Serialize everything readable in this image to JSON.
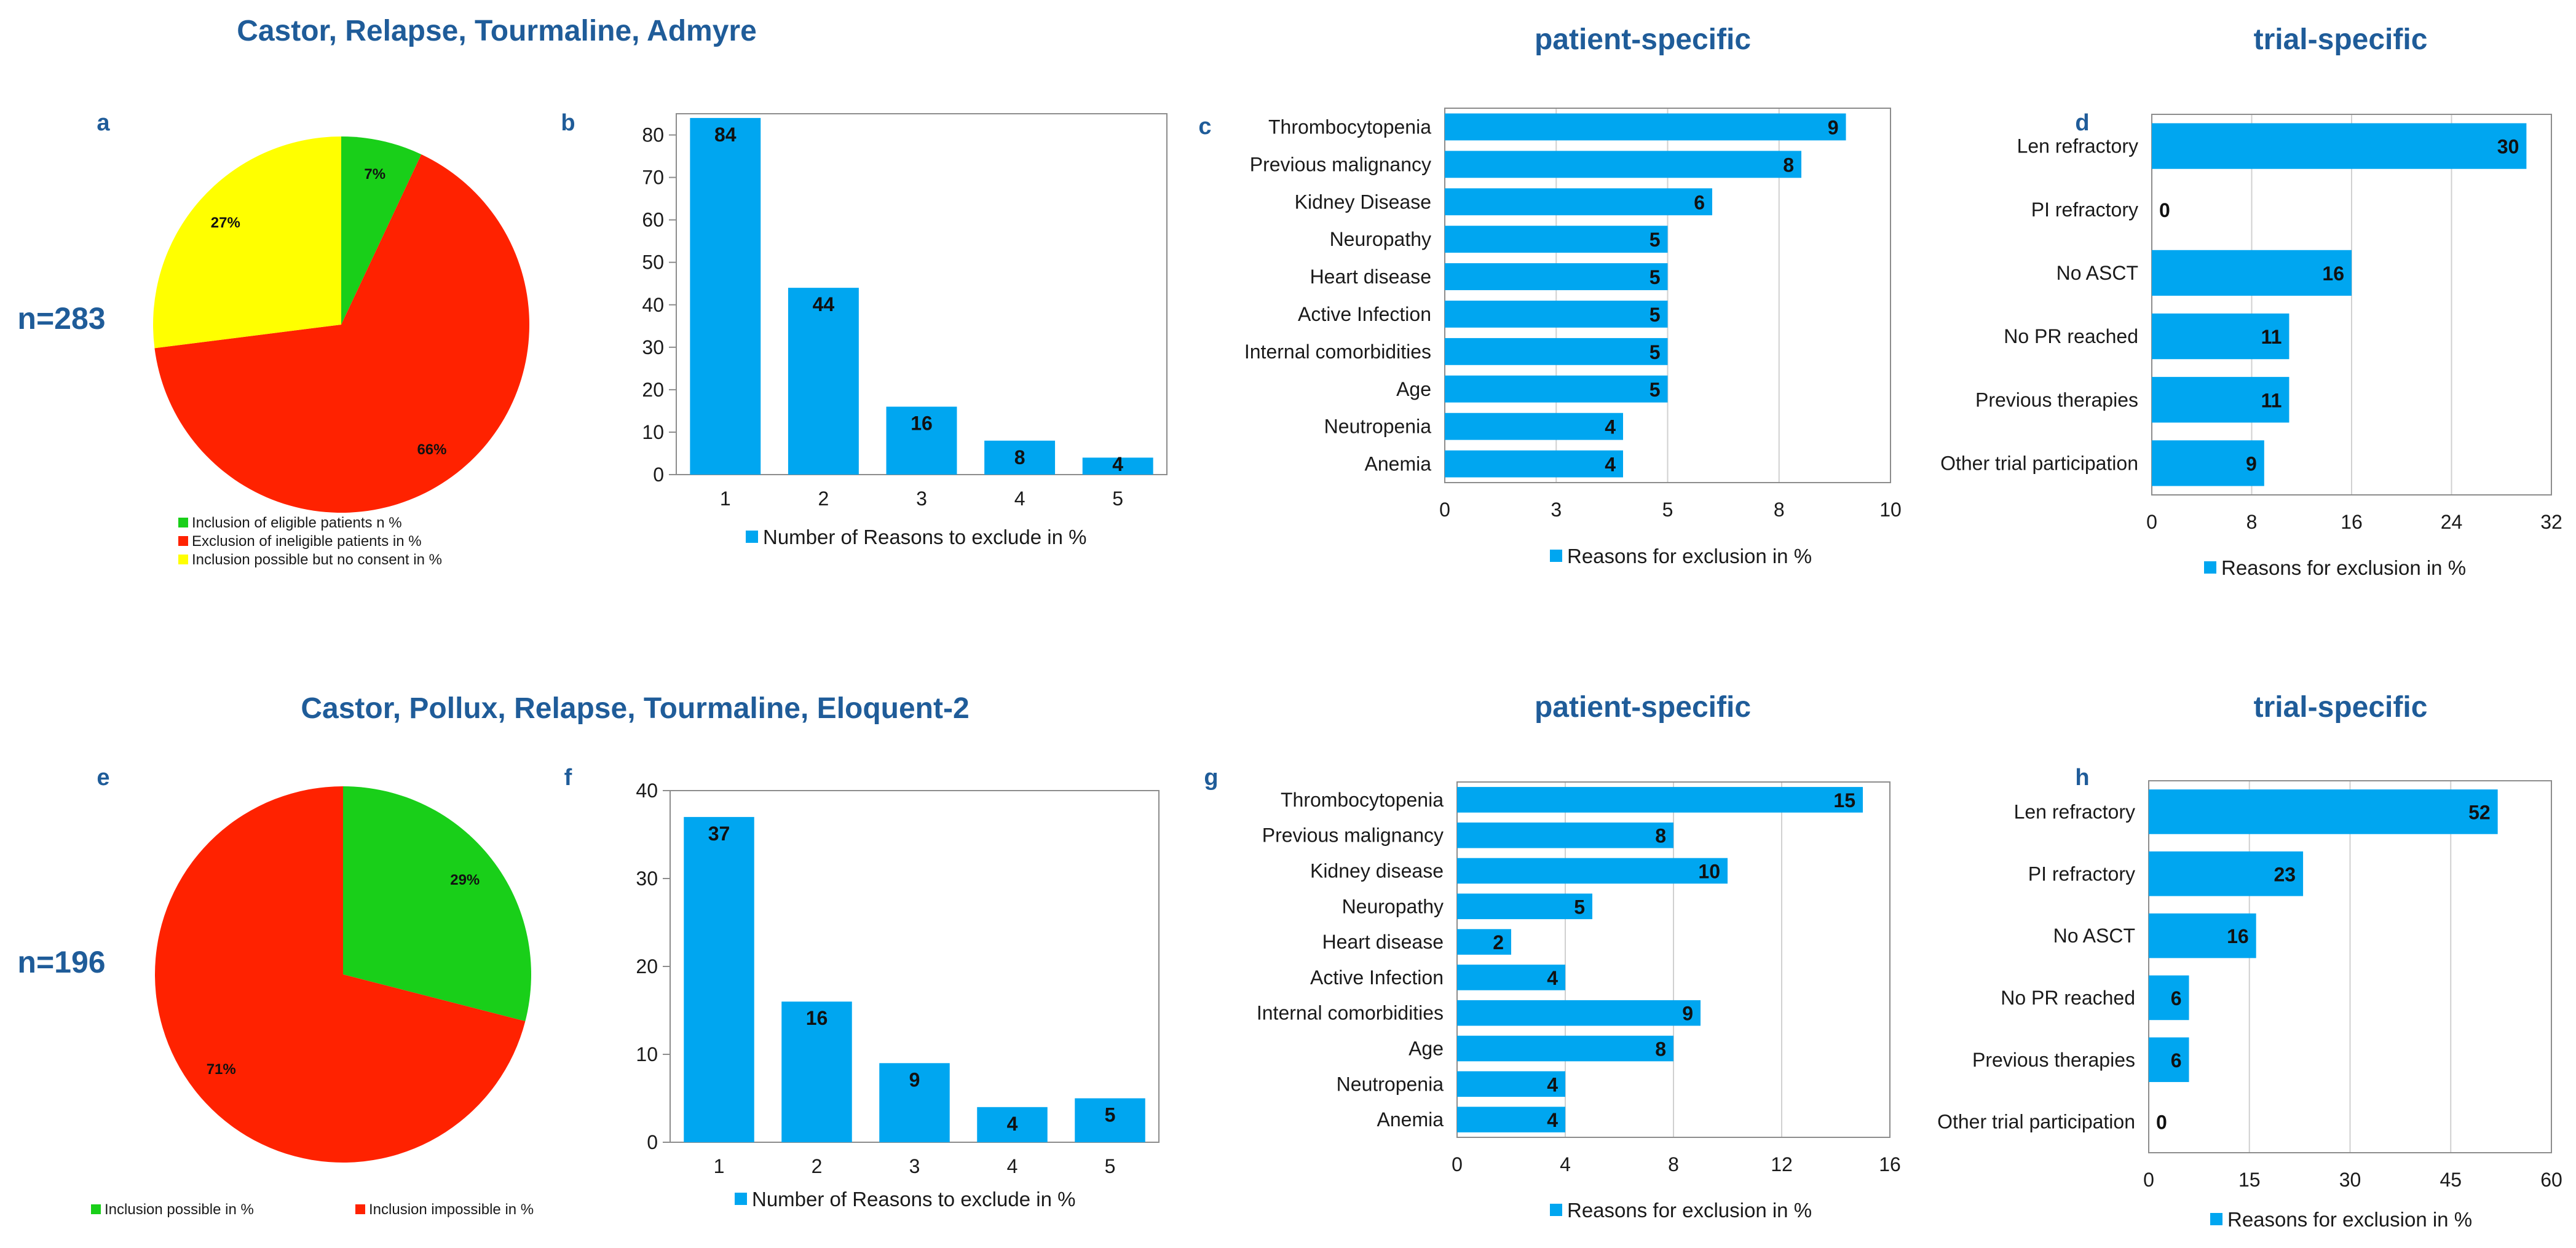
{
  "colors": {
    "bar": "#00a6f0",
    "green": "#19cf19",
    "red": "#ff2200",
    "yellow": "#ffff00",
    "title": "#1f5c99"
  },
  "groups": [
    {
      "title": "Castor, Relapse, Tourmaline, Admyre",
      "n_label": "n=283"
    },
    {
      "title": "Castor, Pollux, Relapse, Tourmaline, Eloquent-2",
      "n_label": "n=196"
    }
  ],
  "section_titles": {
    "patient_top": "patient-specific",
    "trial_top": "trial-specific",
    "patient_bottom": "patient-specific",
    "trial_bottom": "trial-specific"
  },
  "chart_data": [
    {
      "id": "a",
      "letter": "a",
      "type": "pie",
      "slices": [
        {
          "label": "Inclusion of eligible patients n %",
          "value": 7,
          "text": "7%",
          "color": "#19cf19"
        },
        {
          "label": "Exclusion of ineligible patients in %",
          "value": 66,
          "text": "66%",
          "color": "#ff2200"
        },
        {
          "label": "Inclusion possible but no consent in %",
          "value": 27,
          "text": "27%",
          "color": "#ffff00"
        }
      ]
    },
    {
      "id": "b",
      "letter": "b",
      "type": "bar",
      "orientation": "vertical",
      "categories": [
        "1",
        "2",
        "3",
        "4",
        "5"
      ],
      "values": [
        84,
        44,
        16,
        8,
        4
      ],
      "ylim": [
        0,
        85
      ],
      "yticks": [
        0,
        10,
        20,
        30,
        40,
        50,
        60,
        70,
        80
      ],
      "legend": "Number of Reasons to exclude in %"
    },
    {
      "id": "c",
      "letter": "c",
      "type": "bar",
      "orientation": "horizontal",
      "categories": [
        "Thrombocytopenia",
        "Previous malignancy",
        "Kidney Disease",
        "Neuropathy",
        "Heart disease",
        "Active Infection",
        "Internal comorbidities",
        "Age",
        "Neutropenia",
        "Anemia"
      ],
      "values": [
        9,
        8,
        6,
        5,
        5,
        5,
        5,
        5,
        4,
        4
      ],
      "xlim": [
        0,
        10
      ],
      "xticks": [
        0,
        2.5,
        5,
        7.5,
        10
      ],
      "xticklabels": [
        "0",
        "3",
        "5",
        "8",
        "10"
      ],
      "legend": "Reasons for exclusion in %"
    },
    {
      "id": "d",
      "letter": "d",
      "type": "bar",
      "orientation": "horizontal",
      "categories": [
        "Len refractory",
        "PI refractory",
        "No ASCT",
        "No PR reached",
        "Previous therapies",
        "Other trial participation"
      ],
      "values": [
        30,
        0,
        16,
        11,
        11,
        9
      ],
      "xlim": [
        0,
        32
      ],
      "xticks": [
        0,
        8,
        16,
        24,
        32
      ],
      "xticklabels": [
        "0",
        "8",
        "16",
        "24",
        "32"
      ],
      "legend": "Reasons for exclusion in %"
    },
    {
      "id": "e",
      "letter": "e",
      "type": "pie",
      "slices": [
        {
          "label": "Inclusion possible in %",
          "value": 29,
          "text": "29%",
          "color": "#19cf19"
        },
        {
          "label": "Inclusion impossible in %",
          "value": 71,
          "text": "71%",
          "color": "#ff2200"
        }
      ]
    },
    {
      "id": "f",
      "letter": "f",
      "type": "bar",
      "orientation": "vertical",
      "categories": [
        "1",
        "2",
        "3",
        "4",
        "5"
      ],
      "values": [
        37,
        16,
        9,
        4,
        5
      ],
      "ylim": [
        0,
        40
      ],
      "yticks": [
        0,
        10,
        20,
        30,
        40
      ],
      "legend": "Number of Reasons to exclude in %"
    },
    {
      "id": "g",
      "letter": "g",
      "type": "bar",
      "orientation": "horizontal",
      "categories": [
        "Thrombocytopenia",
        "Previous malignancy",
        "Kidney disease",
        "Neuropathy",
        "Heart disease",
        "Active Infection",
        "Internal comorbidities",
        "Age",
        "Neutropenia",
        "Anemia"
      ],
      "values": [
        15,
        8,
        10,
        5,
        2,
        4,
        9,
        8,
        4,
        4
      ],
      "xlim": [
        0,
        16
      ],
      "xticks": [
        0,
        4,
        8,
        12,
        16
      ],
      "xticklabels": [
        "0",
        "4",
        "8",
        "12",
        "16"
      ],
      "legend": "Reasons for exclusion in %"
    },
    {
      "id": "h",
      "letter": "h",
      "type": "bar",
      "orientation": "horizontal",
      "categories": [
        "Len refractory",
        "PI refractory",
        "No ASCT",
        "No PR reached",
        "Previous therapies",
        "Other trial participation"
      ],
      "values": [
        52,
        23,
        16,
        6,
        6,
        0
      ],
      "xlim": [
        0,
        60
      ],
      "xticks": [
        0,
        15,
        30,
        45,
        60
      ],
      "xticklabels": [
        "0",
        "15",
        "30",
        "45",
        "60"
      ],
      "legend": "Reasons for exclusion in %"
    }
  ]
}
